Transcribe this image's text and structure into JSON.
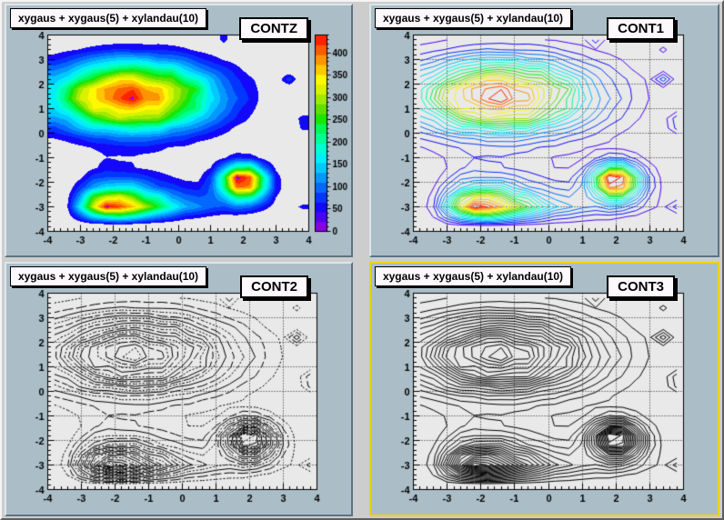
{
  "colors": {
    "canvas_bg": "#cdcdcd",
    "pad_bg": "#abbec8",
    "frame_bg": "#e9e9e9",
    "pad_bevel_light": "#dce6eb",
    "pad_bevel_dark": "#5d7383",
    "selected_highlight": "#e8d400",
    "box_bg": "#fcf8fc",
    "text": "#000000"
  },
  "pads": [
    {
      "id": "contz",
      "title": "xygaus + xygaus(5) + xylandau(10)",
      "label": "CONTZ",
      "mode": "fill",
      "grid": false,
      "palette_bar": true,
      "selected": false
    },
    {
      "id": "cont1",
      "title": "xygaus + xygaus(5) + xylandau(10)",
      "label": "CONT1",
      "mode": "color-lines",
      "grid": true,
      "palette_bar": false,
      "selected": false
    },
    {
      "id": "cont2",
      "title": "xygaus + xygaus(5) + xylandau(10)",
      "label": "CONT2",
      "mode": "style-lines",
      "grid": true,
      "palette_bar": false,
      "selected": false
    },
    {
      "id": "cont3",
      "title": "xygaus + xygaus(5) + xylandau(10)",
      "label": "CONT3",
      "mode": "solid-lines",
      "grid": true,
      "palette_bar": false,
      "selected": true
    }
  ],
  "chart_data": {
    "type": "heatmap",
    "variant": "2d-contour-histogram",
    "function": "xygaus + xygaus(5) + xylandau(10)",
    "draw_options": [
      "CONTZ",
      "CONT1",
      "CONT2",
      "CONT3"
    ],
    "x_range": [
      -4,
      4
    ],
    "y_range": [
      -4,
      4
    ],
    "x_ticks": [
      -4,
      -3,
      -2,
      -1,
      0,
      1,
      2,
      3,
      4
    ],
    "y_ticks": [
      -4,
      -3,
      -2,
      -1,
      0,
      1,
      2,
      3,
      4
    ],
    "z_ticks": [
      0,
      50,
      100,
      150,
      200,
      250,
      300,
      350,
      400
    ],
    "z_max": 440,
    "n_levels": 20,
    "bins": [
      20,
      20
    ],
    "peaks": [
      {
        "type": "gaussian",
        "amplitude": 430,
        "mean": [
          -1.4,
          1.5
        ],
        "sigma": [
          1.8,
          1.0
        ]
      },
      {
        "type": "gaussian",
        "amplitude": 455,
        "mean": [
          2,
          -2
        ],
        "sigma": [
          0.5,
          0.5
        ]
      },
      {
        "type": "landau",
        "amplitude": 420,
        "mpv": [
          -2,
          -3
        ],
        "sigma": [
          0.7,
          0.3
        ]
      }
    ],
    "noise": 0.1,
    "forced_bins": [
      {
        "i": 6,
        "j": 13,
        "z": 448
      },
      {
        "i": 14,
        "j": 5,
        "z": 458
      }
    ],
    "palette": [
      "#8802e0",
      "#4a04f0",
      "#1408fa",
      "#0236ff",
      "#0468ff",
      "#0498ff",
      "#02c8fe",
      "#00eefc",
      "#00fed0",
      "#00fe96",
      "#00f854",
      "#18e800",
      "#60e000",
      "#a0ea00",
      "#d8f200",
      "#fef800",
      "#fec800",
      "#fe9400",
      "#fe5a00",
      "#fe2200"
    ],
    "line_styles": [
      [],
      [
        2,
        2
      ],
      [
        6,
        3
      ]
    ],
    "grid_style": "dotted lines at integer x and y (CONT1, CONT2, CONT3 only)",
    "legend_position": "palette bar right of CONTZ frame"
  }
}
